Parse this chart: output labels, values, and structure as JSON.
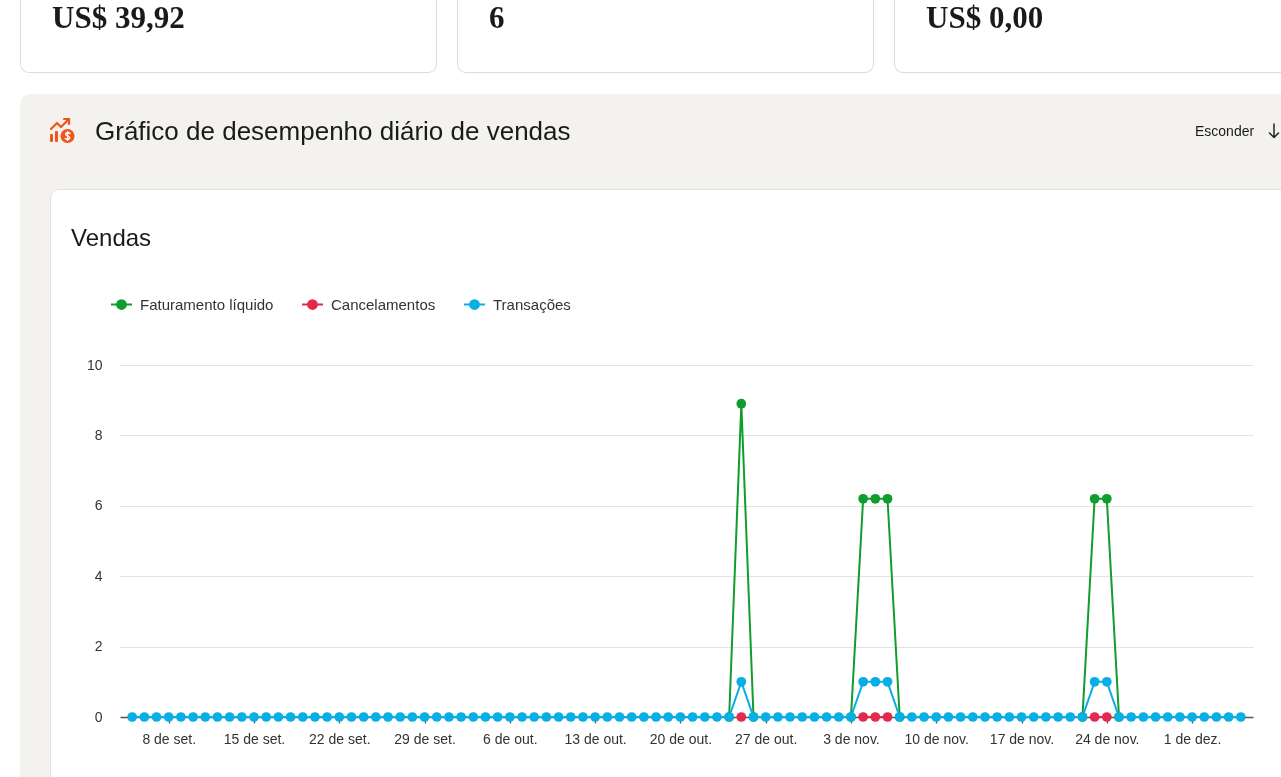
{
  "chart_data": [
    {
      "type": "other",
      "annotations": [
        "US$ 39,92",
        "6",
        "US$ 0,00"
      ]
    },
    {
      "type": "line",
      "title": "Gráfico de desempenho diário de vendas",
      "subtitle": "Vendas",
      "annotations": [
        "Esconder"
      ],
      "x": [
        "--09-05",
        "--09-06",
        "--09-07",
        "--09-08",
        "--09-09",
        "--09-10",
        "--09-11",
        "--09-12",
        "--09-13",
        "--09-14",
        "--09-15",
        "--09-16",
        "--09-17",
        "--09-18",
        "--09-19",
        "--09-20",
        "--09-21",
        "--09-22",
        "--09-23",
        "--09-24",
        "--09-25",
        "--09-26",
        "--09-27",
        "--09-28",
        "--09-29",
        "--09-30",
        "--10-01",
        "--10-02",
        "--10-03",
        "--10-04",
        "--10-05",
        "--10-06",
        "--10-07",
        "--10-08",
        "--10-09",
        "--10-10",
        "--10-11",
        "--10-12",
        "--10-13",
        "--10-14",
        "--10-15",
        "--10-16",
        "--10-17",
        "--10-18",
        "--10-19",
        "--10-20",
        "--10-21",
        "--10-22",
        "--10-23",
        "--10-24",
        "--10-25",
        "--10-26",
        "--10-27",
        "--10-28",
        "--10-29",
        "--10-30",
        "--10-31",
        "--11-01",
        "--11-02",
        "--11-03",
        "--11-04",
        "--11-05",
        "--11-06",
        "--11-07",
        "--11-08",
        "--11-09",
        "--11-10",
        "--11-11",
        "--11-12",
        "--11-13",
        "--11-14",
        "--11-15",
        "--11-16",
        "--11-17",
        "--11-18",
        "--11-19",
        "--11-20",
        "--11-21",
        "--11-22",
        "--11-23",
        "--11-24",
        "--11-25",
        "--11-26",
        "--11-27",
        "--11-28",
        "--11-29",
        "--11-30",
        "--12-01",
        "--12-02",
        "--12-03",
        "--12-04",
        "--12-05"
      ],
      "series": [
        {
          "name": "Faturamento líquido",
          "color": "#0f9d2e",
          "values": [
            null,
            null,
            null,
            null,
            null,
            null,
            null,
            null,
            null,
            null,
            null,
            null,
            null,
            null,
            null,
            null,
            null,
            null,
            null,
            null,
            null,
            null,
            null,
            null,
            null,
            null,
            null,
            null,
            null,
            null,
            null,
            null,
            null,
            null,
            null,
            null,
            null,
            null,
            null,
            null,
            null,
            null,
            null,
            null,
            null,
            null,
            null,
            null,
            null,
            0,
            8.9,
            0,
            null,
            null,
            null,
            null,
            null,
            null,
            null,
            0,
            6.2,
            6.2,
            6.2,
            0,
            null,
            null,
            null,
            null,
            null,
            null,
            null,
            null,
            null,
            null,
            null,
            null,
            null,
            null,
            0,
            6.2,
            6.2,
            0,
            null,
            null,
            null,
            null,
            null,
            null,
            null,
            null,
            null,
            null
          ]
        },
        {
          "name": "Cancelamentos",
          "color": "#e3294d",
          "values": [
            null,
            null,
            null,
            null,
            null,
            null,
            null,
            null,
            null,
            null,
            null,
            null,
            null,
            null,
            null,
            null,
            null,
            null,
            null,
            null,
            null,
            null,
            null,
            null,
            null,
            null,
            null,
            null,
            null,
            null,
            null,
            null,
            null,
            null,
            null,
            null,
            null,
            null,
            null,
            null,
            null,
            null,
            null,
            null,
            null,
            null,
            null,
            null,
            null,
            null,
            0,
            null,
            null,
            null,
            null,
            null,
            null,
            null,
            null,
            null,
            0,
            0,
            0,
            null,
            null,
            null,
            null,
            null,
            null,
            null,
            null,
            null,
            null,
            null,
            null,
            null,
            null,
            null,
            null,
            0,
            0,
            null,
            null,
            null,
            null,
            null,
            null,
            null,
            null,
            null,
            null,
            null
          ]
        },
        {
          "name": "Transações",
          "color": "#08aee6",
          "values": [
            0,
            0,
            0,
            0,
            0,
            0,
            0,
            0,
            0,
            0,
            0,
            0,
            0,
            0,
            0,
            0,
            0,
            0,
            0,
            0,
            0,
            0,
            0,
            0,
            0,
            0,
            0,
            0,
            0,
            0,
            0,
            0,
            0,
            0,
            0,
            0,
            0,
            0,
            0,
            0,
            0,
            0,
            0,
            0,
            0,
            0,
            0,
            0,
            0,
            0,
            1,
            0,
            0,
            0,
            0,
            0,
            0,
            0,
            0,
            0,
            1,
            1,
            1,
            0,
            0,
            0,
            0,
            0,
            0,
            0,
            0,
            0,
            0,
            0,
            0,
            0,
            0,
            0,
            0,
            1,
            1,
            0,
            0,
            0,
            0,
            0,
            0,
            0,
            0,
            0,
            0,
            0
          ]
        }
      ],
      "xlim": [
        "--09-04",
        "--12-06"
      ],
      "xticks": [
        {
          "value": "--09-08",
          "label": "8 de set."
        },
        {
          "value": "--09-15",
          "label": "15 de set."
        },
        {
          "value": "--09-22",
          "label": "22 de set."
        },
        {
          "value": "--09-29",
          "label": "29 de set."
        },
        {
          "value": "--10-06",
          "label": "6 de out."
        },
        {
          "value": "--10-13",
          "label": "13 de out."
        },
        {
          "value": "--10-20",
          "label": "20 de out."
        },
        {
          "value": "--10-27",
          "label": "27 de out."
        },
        {
          "value": "--11-03",
          "label": "3 de nov."
        },
        {
          "value": "--11-10",
          "label": "10 de nov."
        },
        {
          "value": "--11-17",
          "label": "17 de nov."
        },
        {
          "value": "--11-24",
          "label": "24 de nov."
        },
        {
          "value": "--12-01",
          "label": "1 de dez."
        }
      ],
      "ylim": [
        0,
        10
      ],
      "yticks": [
        0,
        2,
        4,
        6,
        8,
        10
      ],
      "grid": "y",
      "legend": "top left",
      "marker": "circle"
    }
  ]
}
